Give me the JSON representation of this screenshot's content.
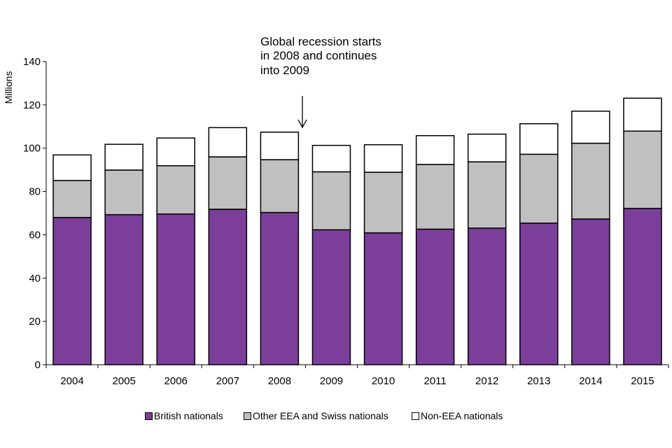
{
  "chart_data": {
    "type": "bar",
    "stacked": true,
    "title": "",
    "xlabel": "",
    "ylabel": "Millions",
    "ylim": [
      0,
      140
    ],
    "yticks": [
      0,
      20,
      40,
      60,
      80,
      100,
      120,
      140
    ],
    "grid": false,
    "categories": [
      "2004",
      "2005",
      "2006",
      "2007",
      "2008",
      "2009",
      "2010",
      "2011",
      "2012",
      "2013",
      "2014",
      "2015"
    ],
    "series": [
      {
        "name": "British nationals",
        "color": "#7B3F9A",
        "values": [
          68,
          69.3,
          69.6,
          71.8,
          70.3,
          62.3,
          60.9,
          62.6,
          63.1,
          65.4,
          67.3,
          72.2
        ]
      },
      {
        "name": "Other EEA and Swiss nationals",
        "color": "#C0C0C0",
        "values": [
          17.1,
          20.6,
          22.3,
          24.2,
          24.4,
          26.8,
          28,
          29.9,
          30.6,
          31.8,
          35,
          35.7
        ]
      },
      {
        "name": "Non-EEA nationals",
        "color": "#FFFFFF",
        "values": [
          11.8,
          11.9,
          12.8,
          13.5,
          12.7,
          12.2,
          12.7,
          13.3,
          12.8,
          14.1,
          14.8,
          15.2
        ]
      }
    ],
    "annotation": {
      "lines": [
        "Global recession starts",
        "in 2008 and continues",
        "into 2009"
      ],
      "arrow_target": "between 2008 and 2009"
    },
    "legend_position": "bottom"
  }
}
